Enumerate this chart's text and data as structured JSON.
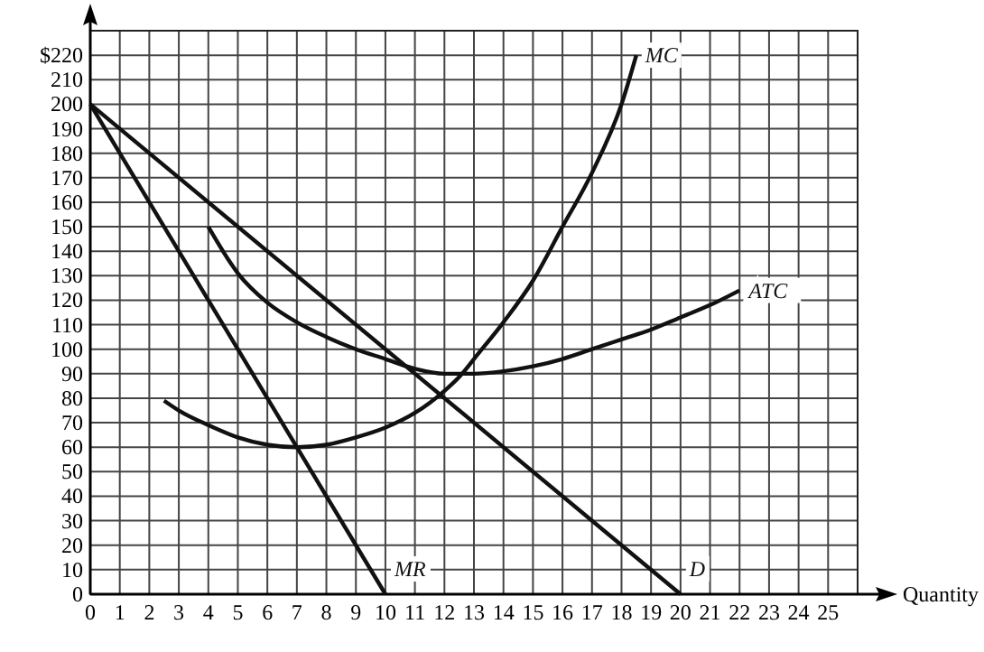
{
  "chart_data": {
    "type": "line",
    "xlabel": "Quantity",
    "xlim": [
      0,
      26
    ],
    "ylim": [
      0,
      230
    ],
    "xticks": [
      0,
      1,
      2,
      3,
      4,
      5,
      6,
      7,
      8,
      9,
      10,
      11,
      12,
      13,
      14,
      15,
      16,
      17,
      18,
      19,
      20,
      21,
      22,
      23,
      24,
      25
    ],
    "yticks": [
      0,
      10,
      20,
      30,
      40,
      50,
      60,
      70,
      80,
      90,
      100,
      110,
      120,
      130,
      140,
      150,
      160,
      170,
      180,
      190,
      200,
      210,
      {
        "value": 220,
        "label": "$220"
      },
      {
        "value": 230,
        "label": null
      }
    ],
    "grid": true,
    "marker": "none",
    "line_style": "solid",
    "series": [
      {
        "name": "MC",
        "color": "#111111",
        "x": [
          2.5,
          3,
          4,
          5,
          6,
          7,
          8,
          9,
          10,
          11,
          12,
          12.6,
          13,
          14,
          15,
          16,
          17,
          18,
          18.5
        ],
        "values": [
          79,
          75,
          69,
          64,
          61,
          60,
          61,
          64,
          68,
          74,
          83,
          90,
          96,
          111,
          128,
          150,
          172,
          200,
          220
        ]
      },
      {
        "name": "ATC",
        "color": "#111111",
        "x": [
          4,
          5,
          6,
          7,
          8,
          9,
          10,
          11,
          12,
          13,
          14,
          15,
          16,
          17,
          18,
          19,
          20,
          21,
          22
        ],
        "values": [
          150,
          131,
          119,
          111,
          105,
          100,
          96,
          92,
          90,
          90,
          91,
          93,
          96,
          100,
          104,
          108,
          113,
          118,
          124
        ]
      },
      {
        "name": "D",
        "color": "#111111",
        "x": [
          0,
          20
        ],
        "values": [
          200,
          0
        ]
      },
      {
        "name": "MR",
        "color": "#111111",
        "x": [
          0,
          10
        ],
        "values": [
          200,
          0
        ]
      }
    ]
  }
}
